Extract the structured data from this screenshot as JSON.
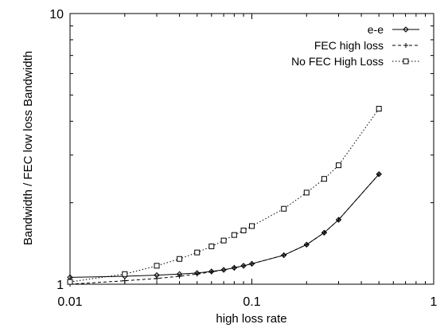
{
  "chart_data": {
    "type": "line",
    "xlabel": "high loss rate",
    "ylabel": "Bandwidth / FEC low loss Bandwidth",
    "xscale": "log",
    "yscale": "log",
    "xlim": [
      0.01,
      1
    ],
    "ylim": [
      1,
      10
    ],
    "xticks": [
      {
        "value": 0.01,
        "label": "0.01"
      },
      {
        "value": 0.1,
        "label": "0.1"
      },
      {
        "value": 1,
        "label": "1"
      }
    ],
    "yticks": [
      {
        "value": 1,
        "label": "1"
      },
      {
        "value": 10,
        "label": "10"
      }
    ],
    "grid": false,
    "legend_position": "top-right",
    "series": [
      {
        "name": "e-e",
        "line": "solid",
        "marker": "diamond",
        "x": [
          0.01,
          0.02,
          0.03,
          0.04,
          0.05,
          0.06,
          0.07,
          0.08,
          0.09,
          0.1,
          0.15,
          0.2,
          0.25,
          0.3,
          0.5
        ],
        "y": [
          1.06,
          1.07,
          1.08,
          1.09,
          1.1,
          1.115,
          1.13,
          1.15,
          1.17,
          1.19,
          1.28,
          1.4,
          1.55,
          1.73,
          2.55
        ]
      },
      {
        "name": "FEC high loss",
        "line": "dashed",
        "marker": "plus",
        "x": [
          0.01,
          0.02,
          0.03,
          0.04,
          0.05,
          0.06,
          0.07,
          0.08,
          0.09,
          0.1,
          0.15,
          0.2,
          0.25,
          0.3,
          0.5
        ],
        "y": [
          1.0,
          1.03,
          1.05,
          1.07,
          1.09,
          1.11,
          1.13,
          1.15,
          1.17,
          1.19,
          1.28,
          1.4,
          1.55,
          1.73,
          2.55
        ]
      },
      {
        "name": "No FEC High Loss",
        "line": "dotted",
        "marker": "square",
        "x": [
          0.01,
          0.02,
          0.03,
          0.04,
          0.05,
          0.06,
          0.07,
          0.08,
          0.09,
          0.1,
          0.15,
          0.2,
          0.25,
          0.3,
          0.5
        ],
        "y": [
          1.02,
          1.09,
          1.17,
          1.24,
          1.31,
          1.38,
          1.45,
          1.52,
          1.58,
          1.64,
          1.9,
          2.18,
          2.45,
          2.75,
          4.45
        ]
      }
    ]
  }
}
